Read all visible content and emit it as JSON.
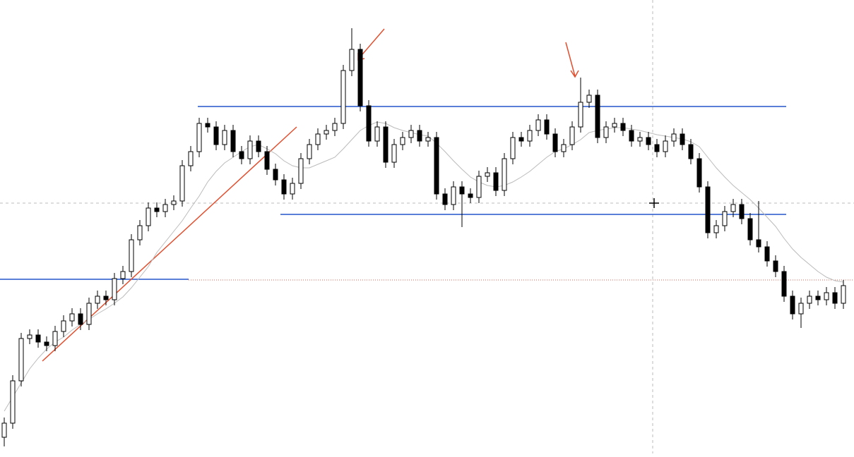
{
  "chart_data": {
    "type": "candlestick",
    "ylim": [
      0,
      643
    ],
    "open": [
      23,
      43,
      103,
      163,
      168,
      158,
      153,
      173,
      188,
      198,
      183,
      213,
      223,
      218,
      248,
      258,
      303,
      323,
      348,
      343,
      353,
      358,
      408,
      428,
      468,
      463,
      438,
      458,
      428,
      418,
      443,
      428,
      403,
      388,
      368,
      383,
      418,
      438,
      453,
      458,
      468,
      543,
      573,
      493,
      443,
      463,
      413,
      438,
      448,
      458,
      443,
      448,
      368,
      353,
      378,
      368,
      363,
      393,
      398,
      373,
      418,
      448,
      443,
      458,
      473,
      453,
      428,
      438,
      463,
      498,
      508,
      448,
      463,
      468,
      458,
      443,
      448,
      438,
      428,
      443,
      453,
      438,
      418,
      378,
      313,
      323,
      343,
      353,
      333,
      303,
      293,
      273,
      258,
      223,
      198,
      213,
      223,
      218,
      228,
      213
    ],
    "high": [
      51,
      111,
      171,
      176,
      176,
      166,
      181,
      196,
      206,
      206,
      221,
      231,
      231,
      256,
      266,
      311,
      331,
      356,
      356,
      361,
      366,
      416,
      436,
      476,
      476,
      471,
      466,
      466,
      436,
      451,
      451,
      436,
      411,
      396,
      391,
      426,
      446,
      461,
      466,
      476,
      551,
      603,
      581,
      501,
      471,
      471,
      446,
      456,
      466,
      466,
      456,
      456,
      376,
      386,
      386,
      376,
      401,
      406,
      406,
      426,
      456,
      456,
      466,
      481,
      481,
      461,
      446,
      471,
      533,
      516,
      516,
      471,
      476,
      476,
      466,
      456,
      456,
      446,
      451,
      461,
      461,
      446,
      426,
      386,
      331,
      351,
      361,
      361,
      341,
      358,
      301,
      281,
      266,
      231,
      221,
      231,
      231,
      236,
      236,
      246
    ],
    "low": [
      10,
      35,
      95,
      155,
      150,
      145,
      145,
      165,
      180,
      175,
      175,
      205,
      210,
      210,
      240,
      250,
      295,
      315,
      335,
      335,
      345,
      350,
      400,
      420,
      455,
      430,
      430,
      420,
      410,
      410,
      420,
      395,
      380,
      360,
      360,
      375,
      410,
      430,
      445,
      450,
      460,
      535,
      485,
      435,
      435,
      405,
      405,
      430,
      440,
      435,
      435,
      360,
      345,
      345,
      321,
      355,
      355,
      385,
      365,
      365,
      410,
      435,
      435,
      450,
      445,
      420,
      420,
      430,
      455,
      490,
      440,
      440,
      455,
      450,
      435,
      435,
      430,
      420,
      420,
      435,
      430,
      410,
      370,
      305,
      305,
      315,
      335,
      325,
      295,
      285,
      265,
      250,
      215,
      190,
      178,
      205,
      210,
      210,
      205,
      205
    ],
    "close": [
      43,
      103,
      163,
      168,
      158,
      153,
      173,
      188,
      198,
      183,
      213,
      223,
      218,
      248,
      258,
      303,
      323,
      348,
      343,
      353,
      358,
      408,
      428,
      468,
      463,
      438,
      458,
      428,
      418,
      443,
      428,
      403,
      388,
      368,
      383,
      418,
      438,
      453,
      458,
      468,
      543,
      573,
      493,
      443,
      463,
      413,
      438,
      448,
      458,
      443,
      448,
      368,
      353,
      378,
      368,
      363,
      393,
      398,
      373,
      418,
      448,
      443,
      458,
      473,
      453,
      428,
      438,
      463,
      498,
      508,
      448,
      463,
      468,
      458,
      443,
      448,
      438,
      428,
      443,
      453,
      438,
      418,
      378,
      313,
      323,
      343,
      353,
      333,
      303,
      293,
      273,
      258,
      223,
      198,
      213,
      223,
      218,
      228,
      213,
      238
    ],
    "ma": [
      60,
      80,
      100,
      120,
      135,
      148,
      158,
      165,
      175,
      183,
      190,
      198,
      205,
      213,
      222,
      235,
      250,
      265,
      285,
      300,
      315,
      330,
      348,
      365,
      385,
      400,
      412,
      420,
      428,
      435,
      438,
      432,
      425,
      415,
      408,
      405,
      405,
      410,
      415,
      420,
      432,
      445,
      458,
      465,
      470,
      468,
      462,
      458,
      455,
      452,
      450,
      440,
      428,
      415,
      403,
      392,
      385,
      380,
      378,
      380,
      385,
      392,
      400,
      410,
      420,
      428,
      432,
      438,
      445,
      455,
      458,
      460,
      462,
      462,
      460,
      458,
      455,
      452,
      450,
      448,
      446,
      442,
      435,
      420,
      405,
      392,
      380,
      370,
      360,
      348,
      335,
      322,
      305,
      290,
      278,
      268,
      258,
      250,
      245,
      243
    ],
    "up_color": "#ffffff",
    "down_color": "#000000",
    "ma_color": "#bbbbbb",
    "levels": [
      {
        "value": 492,
        "color": "#2255cc"
      },
      {
        "value": 339,
        "color": "#2255cc"
      },
      {
        "value": 247,
        "color": "#2255cc"
      }
    ],
    "price_line": {
      "value": 246,
      "color": "#e06050"
    },
    "trendline": {
      "values": [
        131,
        463
      ],
      "color": "#e05030"
    },
    "crosshair": 355
  }
}
